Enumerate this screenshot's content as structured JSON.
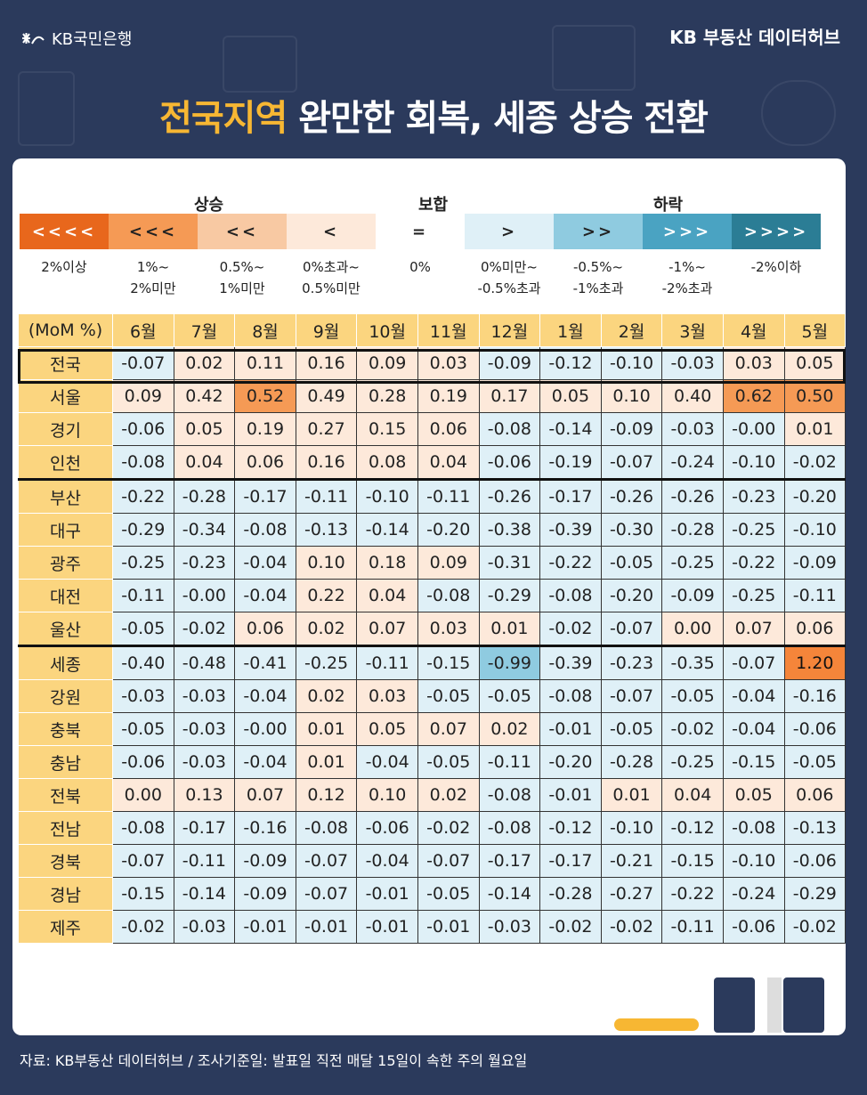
{
  "header": {
    "bank_name": "KB국민은행",
    "brand_right": "KB 부동산 데이터허브"
  },
  "title": {
    "highlight": "전국지역",
    "rest": " 완만한 회복, 세종 상승 전환"
  },
  "legend": {
    "groups": {
      "up": "상승",
      "flat": "보합",
      "down": "하락"
    },
    "items": [
      {
        "symbol": "<<<<",
        "label1": "2%이상",
        "label2": "",
        "color": "#e8671c"
      },
      {
        "symbol": "<<<",
        "label1": "1%~",
        "label2": "2%미만",
        "color": "#f59a55"
      },
      {
        "symbol": "<<",
        "label1": "0.5%~",
        "label2": "1%미만",
        "color": "#f8c9a3"
      },
      {
        "symbol": "<",
        "label1": "0%초과~",
        "label2": "0.5%미만",
        "color": "#fde9da"
      },
      {
        "symbol": "=",
        "label1": "0%",
        "label2": "",
        "color": "#ffffff"
      },
      {
        "symbol": ">",
        "label1": "0%미만~",
        "label2": "-0.5%초과",
        "color": "#dff0f7"
      },
      {
        "symbol": ">>",
        "label1": "-0.5%~",
        "label2": "-1%초과",
        "color": "#8fcbe0"
      },
      {
        "symbol": ">>>",
        "label1": "-1%~",
        "label2": "-2%초과",
        "color": "#4aa3c2"
      },
      {
        "symbol": ">>>>",
        "label1": "-2%이하",
        "label2": "",
        "color": "#2b7d95"
      }
    ]
  },
  "chart_data": {
    "type": "table",
    "corner_label": "(MoM %)",
    "columns": [
      "6월",
      "7월",
      "8월",
      "9월",
      "10월",
      "11월",
      "12월",
      "1월",
      "2월",
      "3월",
      "4월",
      "5월"
    ],
    "rows": [
      {
        "region": "전국",
        "values": [
          "-0.07",
          "0.02",
          "0.11",
          "0.16",
          "0.09",
          "0.03",
          "-0.09",
          "-0.12",
          "-0.10",
          "-0.03",
          "0.03",
          "0.05"
        ]
      },
      {
        "region": "서울",
        "values": [
          "0.09",
          "0.42",
          "0.52",
          "0.49",
          "0.28",
          "0.19",
          "0.17",
          "0.05",
          "0.10",
          "0.40",
          "0.62",
          "0.50"
        ]
      },
      {
        "region": "경기",
        "values": [
          "-0.06",
          "0.05",
          "0.19",
          "0.27",
          "0.15",
          "0.06",
          "-0.08",
          "-0.14",
          "-0.09",
          "-0.03",
          "-0.00",
          "0.01"
        ]
      },
      {
        "region": "인천",
        "values": [
          "-0.08",
          "0.04",
          "0.06",
          "0.16",
          "0.08",
          "0.04",
          "-0.06",
          "-0.19",
          "-0.07",
          "-0.24",
          "-0.10",
          "-0.02"
        ]
      },
      {
        "region": "부산",
        "values": [
          "-0.22",
          "-0.28",
          "-0.17",
          "-0.11",
          "-0.10",
          "-0.11",
          "-0.26",
          "-0.17",
          "-0.26",
          "-0.26",
          "-0.23",
          "-0.20"
        ]
      },
      {
        "region": "대구",
        "values": [
          "-0.29",
          "-0.34",
          "-0.08",
          "-0.13",
          "-0.14",
          "-0.20",
          "-0.38",
          "-0.39",
          "-0.30",
          "-0.28",
          "-0.25",
          "-0.10"
        ]
      },
      {
        "region": "광주",
        "values": [
          "-0.25",
          "-0.23",
          "-0.04",
          "0.10",
          "0.18",
          "0.09",
          "-0.31",
          "-0.22",
          "-0.05",
          "-0.25",
          "-0.22",
          "-0.09"
        ]
      },
      {
        "region": "대전",
        "values": [
          "-0.11",
          "-0.00",
          "-0.04",
          "0.22",
          "0.04",
          "-0.08",
          "-0.29",
          "-0.08",
          "-0.20",
          "-0.09",
          "-0.25",
          "-0.11"
        ]
      },
      {
        "region": "울산",
        "values": [
          "-0.05",
          "-0.02",
          "0.06",
          "0.02",
          "0.07",
          "0.03",
          "0.01",
          "-0.02",
          "-0.07",
          "0.00",
          "0.07",
          "0.06"
        ]
      },
      {
        "region": "세종",
        "values": [
          "-0.40",
          "-0.48",
          "-0.41",
          "-0.25",
          "-0.11",
          "-0.15",
          "-0.99",
          "-0.39",
          "-0.23",
          "-0.35",
          "-0.07",
          "1.20"
        ]
      },
      {
        "region": "강원",
        "values": [
          "-0.03",
          "-0.03",
          "-0.04",
          "0.02",
          "0.03",
          "-0.05",
          "-0.05",
          "-0.08",
          "-0.07",
          "-0.05",
          "-0.04",
          "-0.16"
        ]
      },
      {
        "region": "충북",
        "values": [
          "-0.05",
          "-0.03",
          "-0.00",
          "0.01",
          "0.05",
          "0.07",
          "0.02",
          "-0.01",
          "-0.05",
          "-0.02",
          "-0.04",
          "-0.06"
        ]
      },
      {
        "region": "충남",
        "values": [
          "-0.06",
          "-0.03",
          "-0.04",
          "0.01",
          "-0.04",
          "-0.05",
          "-0.11",
          "-0.20",
          "-0.28",
          "-0.25",
          "-0.15",
          "-0.05"
        ]
      },
      {
        "region": "전북",
        "values": [
          "0.00",
          "0.13",
          "0.07",
          "0.12",
          "0.10",
          "0.02",
          "-0.08",
          "-0.01",
          "0.01",
          "0.04",
          "0.05",
          "0.06"
        ]
      },
      {
        "region": "전남",
        "values": [
          "-0.08",
          "-0.17",
          "-0.16",
          "-0.08",
          "-0.06",
          "-0.02",
          "-0.08",
          "-0.12",
          "-0.10",
          "-0.12",
          "-0.08",
          "-0.13"
        ]
      },
      {
        "region": "경북",
        "values": [
          "-0.07",
          "-0.11",
          "-0.09",
          "-0.07",
          "-0.04",
          "-0.07",
          "-0.17",
          "-0.17",
          "-0.21",
          "-0.15",
          "-0.10",
          "-0.06"
        ]
      },
      {
        "region": "경남",
        "values": [
          "-0.15",
          "-0.14",
          "-0.09",
          "-0.07",
          "-0.01",
          "-0.05",
          "-0.14",
          "-0.28",
          "-0.27",
          "-0.22",
          "-0.24",
          "-0.29"
        ]
      },
      {
        "region": "제주",
        "values": [
          "-0.02",
          "-0.03",
          "-0.01",
          "-0.01",
          "-0.01",
          "-0.01",
          "-0.03",
          "-0.02",
          "-0.02",
          "-0.11",
          "-0.06",
          "-0.02"
        ]
      }
    ]
  },
  "footer": {
    "source": "자료: KB부동산 데이터허브 / 조사기준일: 발표일 직전 매달 15일이 속한 주의 월요일"
  }
}
